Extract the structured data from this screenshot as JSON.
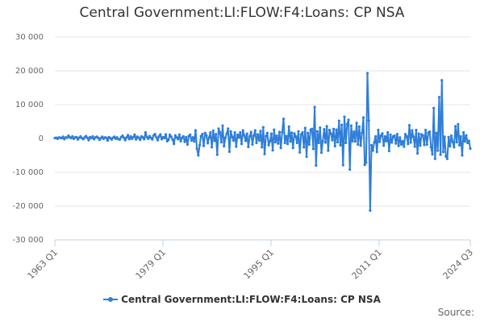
{
  "chart_data": {
    "type": "line",
    "title": "Central Government:LI:FLOW:F4:Loans: CP NSA",
    "xlabel": "",
    "ylabel": "",
    "x_tick_labels": [
      "1963 Q1",
      "1979 Q1",
      "1995 Q1",
      "2011 Q1",
      "2024 Q3"
    ],
    "y_tick_labels": [
      "30 000",
      "20 000",
      "10 000",
      "0",
      "-10 000",
      "-20 000",
      "-30 000"
    ],
    "ylim": [
      -30000,
      30000
    ],
    "x_start": "1963 Q1",
    "x_end": "2024 Q3",
    "frequency": "quarterly",
    "grid": "horizontal",
    "legend_position": "bottom-center",
    "series": [
      {
        "name": "Central Government:LI:FLOW:F4:Loans: CP NSA",
        "color": "#2f7ed8",
        "values": [
          100,
          200,
          -100,
          300,
          200,
          100,
          500,
          -200,
          300,
          200,
          800,
          400,
          100,
          600,
          -100,
          300,
          400,
          -300,
          200,
          600,
          100,
          -200,
          300,
          700,
          200,
          -500,
          400,
          100,
          600,
          -200,
          300,
          500,
          200,
          -400,
          100,
          500,
          -100,
          300,
          200,
          -600,
          400,
          100,
          -300,
          200,
          500,
          -100,
          300,
          -200,
          -300,
          400,
          800,
          200,
          -500,
          300,
          1000,
          -200,
          600,
          -100,
          400,
          1100,
          -300,
          500,
          200,
          -400,
          600,
          300,
          -200,
          1800,
          400,
          -100,
          700,
          200,
          -300,
          900,
          1300,
          300,
          -500,
          600,
          1200,
          -200,
          400,
          100,
          1200,
          -800,
          -400,
          1100,
          500,
          -300,
          -1600,
          900,
          300,
          -200,
          1100,
          -800,
          200,
          600,
          -1000,
          400,
          -1800,
          700,
          1100,
          -600,
          300,
          -900,
          2400,
          -3000,
          -5000,
          -2000,
          700,
          1300,
          -2200,
          1600,
          900,
          -1400,
          300,
          1800,
          -2600,
          2300,
          -700,
          1300,
          -4800,
          2900,
          1800,
          -1100,
          3800,
          -2300,
          200,
          1400,
          2900,
          -3900,
          2100,
          500,
          -600,
          1800,
          -2400,
          1100,
          300,
          1800,
          -1600,
          2400,
          900,
          -700,
          1400,
          -2500,
          600,
          1900,
          -1800,
          800,
          2400,
          -1300,
          1200,
          -600,
          2200,
          -2600,
          3300,
          -4600,
          700,
          1600,
          -2000,
          -800,
          1400,
          -3500,
          2600,
          -1100,
          800,
          -1500,
          1900,
          -2800,
          1800,
          5800,
          -1300,
          700,
          -1600,
          3500,
          -900,
          1700,
          -2800,
          1500,
          600,
          -1300,
          2100,
          -4100,
          1200,
          1800,
          -2600,
          3100,
          -5400,
          1600,
          -1800,
          2600,
          2800,
          -3100,
          9300,
          -8000,
          2100,
          -1300,
          3200,
          -4200,
          -800,
          2700,
          -1200,
          3600,
          -3600,
          2500,
          1500,
          -500,
          2800,
          -2300,
          2600,
          -1100,
          5200,
          -2000,
          4000,
          -7900,
          6400,
          -1300,
          4200,
          5500,
          -9200,
          3800,
          -800,
          2000,
          -900,
          4600,
          -1800,
          3500,
          -2100,
          1600,
          6200,
          -7800,
          -7100,
          19300,
          5300,
          -21300,
          -2000,
          -3600,
          -1200,
          600,
          -4000,
          2500,
          -1000,
          800,
          1500,
          -2100,
          600,
          -800,
          1800,
          -3700,
          1100,
          -1200,
          600,
          800,
          -1500,
          1300,
          -2200,
          300,
          -1800,
          -800,
          -2400,
          1300,
          600,
          -1600,
          3900,
          -1200,
          2400,
          500,
          -2400,
          2500,
          -4400,
          1400,
          -2100,
          1200,
          900,
          -1900,
          2500,
          -1800,
          1700,
          2000,
          -2600,
          -4700,
          9000,
          -6000,
          1600,
          -3600,
          12200,
          -4800,
          17200,
          -4000,
          500,
          -5300,
          -6000,
          400,
          -2300,
          800,
          -1000,
          -2600,
          3600,
          -1100,
          4200,
          -2000,
          600,
          -5000,
          1800,
          -900,
          900,
          -1300,
          -700,
          -3000
        ]
      }
    ]
  },
  "legend": {
    "label": "Central Government:LI:FLOW:F4:Loans: CP NSA"
  },
  "source": {
    "label": "Source:"
  }
}
